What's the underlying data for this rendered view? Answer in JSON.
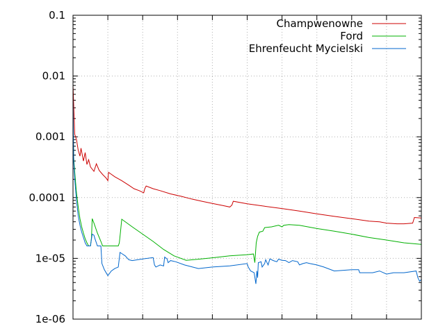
{
  "chart_data": {
    "type": "line",
    "y_scale": "log",
    "ylim": [
      1e-06,
      0.1
    ],
    "y_ticks": [
      "0.1",
      "0.01",
      "0.001",
      "0.0001",
      "1e-05",
      "1e-06"
    ],
    "x_tick_labels_shown": false,
    "xlim": [
      0,
      100
    ],
    "grid": true,
    "legend_position": "top-right",
    "series": [
      {
        "name": "Champwenowne",
        "color": "#cc0000",
        "points": [
          [
            0,
            0.007
          ],
          [
            0.5,
            0.0011
          ],
          [
            1,
            0.0009
          ],
          [
            1.5,
            0.0006
          ],
          [
            2,
            0.00048
          ],
          [
            2.3,
            0.00065
          ],
          [
            3,
            0.0004
          ],
          [
            3.5,
            0.00055
          ],
          [
            4,
            0.00035
          ],
          [
            4.5,
            0.00042
          ],
          [
            5,
            0.00032
          ],
          [
            6,
            0.00027
          ],
          [
            6.7,
            0.00036
          ],
          [
            7.5,
            0.00028
          ],
          [
            8.5,
            0.00024
          ],
          [
            9.5,
            0.00021
          ],
          [
            10,
            0.00019
          ],
          [
            10.2,
            0.00026
          ],
          [
            12,
            0.00022
          ],
          [
            14,
            0.00019
          ],
          [
            16,
            0.00016
          ],
          [
            17.5,
            0.00014
          ],
          [
            19,
            0.00013
          ],
          [
            20.3,
            0.00012
          ],
          [
            20.6,
            0.00014
          ],
          [
            21,
            0.000155
          ],
          [
            23,
            0.00014
          ],
          [
            25,
            0.00013
          ],
          [
            28,
            0.000115
          ],
          [
            31,
            0.000105
          ],
          [
            34,
            9.5e-05
          ],
          [
            37,
            8.7e-05
          ],
          [
            40,
            8e-05
          ],
          [
            43,
            7.4e-05
          ],
          [
            45,
            7e-05
          ],
          [
            45.6,
            7.5e-05
          ],
          [
            46,
            8.7e-05
          ],
          [
            50,
            7.9e-05
          ],
          [
            55,
            7.2e-05
          ],
          [
            60,
            6.6e-05
          ],
          [
            65,
            6e-05
          ],
          [
            70,
            5.4e-05
          ],
          [
            75,
            4.9e-05
          ],
          [
            80,
            4.5e-05
          ],
          [
            85,
            4.1e-05
          ],
          [
            88,
            4e-05
          ],
          [
            90,
            3.8e-05
          ],
          [
            93,
            3.7e-05
          ],
          [
            95,
            3.7e-05
          ],
          [
            97.5,
            3.8e-05
          ],
          [
            98,
            4.7e-05
          ],
          [
            100,
            4.6e-05
          ]
        ]
      },
      {
        "name": "Ford",
        "color": "#00b000",
        "points": [
          [
            0,
            0.0015
          ],
          [
            0.2,
            0.00045
          ],
          [
            0.6,
            0.00022
          ],
          [
            1,
            0.00012
          ],
          [
            1.5,
            7e-05
          ],
          [
            2,
            4.5e-05
          ],
          [
            2.5,
            3.3e-05
          ],
          [
            3,
            2.6e-05
          ],
          [
            3.5,
            2.1e-05
          ],
          [
            4,
            1.8e-05
          ],
          [
            4.5,
            1.6e-05
          ],
          [
            5,
            1.6e-05
          ],
          [
            5.3,
            2.2e-05
          ],
          [
            5.5,
            4.5e-05
          ],
          [
            6,
            3.8e-05
          ],
          [
            7,
            2.6e-05
          ],
          [
            8,
            1.9e-05
          ],
          [
            8.5,
            1.6e-05
          ],
          [
            13,
            1.6e-05
          ],
          [
            13.3,
            1.8e-05
          ],
          [
            13.6,
            2.6e-05
          ],
          [
            14,
            4.4e-05
          ],
          [
            17,
            3.3e-05
          ],
          [
            20,
            2.5e-05
          ],
          [
            23,
            1.9e-05
          ],
          [
            26,
            1.4e-05
          ],
          [
            29,
            1.1e-05
          ],
          [
            32.5,
            9.3e-06
          ],
          [
            36,
            9.7e-06
          ],
          [
            40,
            1.02e-05
          ],
          [
            45,
            1.1e-05
          ],
          [
            50,
            1.15e-05
          ],
          [
            51.8,
            1.18e-05
          ],
          [
            52.2,
            8.5e-06
          ],
          [
            52.6,
            1.8e-05
          ],
          [
            53,
            2.3e-05
          ],
          [
            53.5,
            2.7e-05
          ],
          [
            54.5,
            2.8e-05
          ],
          [
            55,
            3.2e-05
          ],
          [
            57,
            3.3e-05
          ],
          [
            59,
            3.5e-05
          ],
          [
            60,
            3.3e-05
          ],
          [
            60.5,
            3.5e-05
          ],
          [
            62,
            3.6e-05
          ],
          [
            65,
            3.5e-05
          ],
          [
            70,
            3.1e-05
          ],
          [
            75,
            2.8e-05
          ],
          [
            80,
            2.5e-05
          ],
          [
            85,
            2.2e-05
          ],
          [
            90,
            2e-05
          ],
          [
            95,
            1.8e-05
          ],
          [
            100,
            1.7e-05
          ]
        ]
      },
      {
        "name": "Ehrenfeucht Mycielski",
        "color": "#0066cc",
        "points": [
          [
            0,
            0.005
          ],
          [
            0.2,
            0.0004
          ],
          [
            0.5,
            0.0002
          ],
          [
            1,
            9e-05
          ],
          [
            1.5,
            5e-05
          ],
          [
            2,
            3.5e-05
          ],
          [
            2.5,
            2.7e-05
          ],
          [
            3,
            2.2e-05
          ],
          [
            3.5,
            1.8e-05
          ],
          [
            4,
            1.6e-05
          ],
          [
            5,
            1.6e-05
          ],
          [
            5.5,
            2.5e-05
          ],
          [
            6,
            2.4e-05
          ],
          [
            6.3,
            2.1e-05
          ],
          [
            7,
            1.6e-05
          ],
          [
            8,
            1.6e-05
          ],
          [
            8.3,
            8.2e-06
          ],
          [
            9,
            6.5e-06
          ],
          [
            10,
            5.2e-06
          ],
          [
            11,
            6.2e-06
          ],
          [
            12,
            6.8e-06
          ],
          [
            13,
            7.2e-06
          ],
          [
            13.5,
            1.25e-05
          ],
          [
            14,
            1.2e-05
          ],
          [
            15,
            1.1e-05
          ],
          [
            16,
            9.5e-06
          ],
          [
            17,
            9.2e-06
          ],
          [
            20,
            9.8e-06
          ],
          [
            23,
            1.03e-05
          ],
          [
            23.4,
            7.8e-06
          ],
          [
            23.8,
            7.2e-06
          ],
          [
            25,
            7.8e-06
          ],
          [
            26,
            7.5e-06
          ],
          [
            26.3,
            1.05e-05
          ],
          [
            27,
            9.8e-06
          ],
          [
            27.3,
            8.5e-06
          ],
          [
            28,
            9.2e-06
          ],
          [
            29.5,
            8.8e-06
          ],
          [
            32,
            7.8e-06
          ],
          [
            36,
            6.8e-06
          ],
          [
            40,
            7.2e-06
          ],
          [
            45,
            7.5e-06
          ],
          [
            50,
            8.2e-06
          ],
          [
            50.3,
            7.2e-06
          ],
          [
            51,
            6.2e-06
          ],
          [
            52,
            5.8e-06
          ],
          [
            52.3,
            4.5e-06
          ],
          [
            52.5,
            3.8e-06
          ],
          [
            52.8,
            6.2e-06
          ],
          [
            53,
            4.8e-06
          ],
          [
            53.2,
            8.5e-06
          ],
          [
            54,
            8.8e-06
          ],
          [
            54.3,
            7.2e-06
          ],
          [
            55,
            8.2e-06
          ],
          [
            55.3,
            9.5e-06
          ],
          [
            56,
            7.8e-06
          ],
          [
            56.5,
            9.8e-06
          ],
          [
            57.5,
            9.2e-06
          ],
          [
            58.5,
            8.8e-06
          ],
          [
            59,
            9.7e-06
          ],
          [
            60,
            9.3e-06
          ],
          [
            61,
            9.2e-06
          ],
          [
            62,
            8.5e-06
          ],
          [
            63,
            9.2e-06
          ],
          [
            64.5,
            8.8e-06
          ],
          [
            65,
            7.8e-06
          ],
          [
            66,
            8.2e-06
          ],
          [
            67,
            8.5e-06
          ],
          [
            68,
            8.2e-06
          ],
          [
            70,
            7.8e-06
          ],
          [
            72,
            7.2e-06
          ],
          [
            75,
            6.2e-06
          ],
          [
            80,
            6.5e-06
          ],
          [
            82,
            6.5e-06
          ],
          [
            82.3,
            5.8e-06
          ],
          [
            86,
            5.8e-06
          ],
          [
            88,
            6.2e-06
          ],
          [
            90,
            5.5e-06
          ],
          [
            92,
            5.8e-06
          ],
          [
            95,
            5.8e-06
          ],
          [
            98.5,
            6.2e-06
          ],
          [
            99,
            4.8e-06
          ],
          [
            99.5,
            4.2e-06
          ],
          [
            100,
            4.5e-06
          ]
        ]
      }
    ]
  }
}
